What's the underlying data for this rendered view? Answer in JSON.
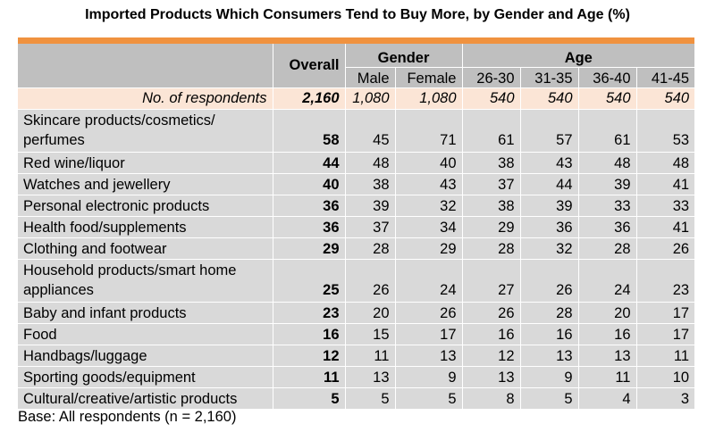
{
  "title": "Imported Products Which Consumers Tend to Buy More, by Gender and Age (%)",
  "header": {
    "overall": "Overall",
    "gender": "Gender",
    "age": "Age",
    "columns": [
      "Male",
      "Female",
      "26-30",
      "31-35",
      "36-40",
      "41-45"
    ]
  },
  "respondents": {
    "label": "No. of respondents",
    "values": [
      "2,160",
      "1,080",
      "1,080",
      "540",
      "540",
      "540",
      "540"
    ]
  },
  "footer": "Base: All respondents (n = 2,160)",
  "chart_data": {
    "type": "table",
    "title": "Imported Products Which Consumers Tend to Buy More, by Gender and Age (%)",
    "columns": [
      "Overall",
      "Male",
      "Female",
      "26-30",
      "31-35",
      "36-40",
      "41-45"
    ],
    "rows": [
      {
        "label": "Skincare products/cosmetics/ perfumes",
        "values": [
          58,
          45,
          71,
          61,
          57,
          61,
          53
        ]
      },
      {
        "label": "Red wine/liquor",
        "values": [
          44,
          48,
          40,
          38,
          43,
          48,
          48
        ]
      },
      {
        "label": "Watches and jewellery",
        "values": [
          40,
          38,
          43,
          37,
          44,
          39,
          41
        ]
      },
      {
        "label": "Personal electronic products",
        "values": [
          36,
          39,
          32,
          38,
          39,
          33,
          33
        ]
      },
      {
        "label": "Health food/supplements",
        "values": [
          36,
          37,
          34,
          29,
          36,
          36,
          41
        ]
      },
      {
        "label": "Clothing and footwear",
        "values": [
          29,
          28,
          29,
          28,
          32,
          28,
          26
        ]
      },
      {
        "label": "Household products/smart home appliances",
        "values": [
          25,
          26,
          24,
          27,
          26,
          24,
          23
        ]
      },
      {
        "label": "Baby and infant products",
        "values": [
          23,
          20,
          26,
          26,
          28,
          20,
          17
        ]
      },
      {
        "label": "Food",
        "values": [
          16,
          15,
          17,
          16,
          16,
          16,
          17
        ]
      },
      {
        "label": "Handbags/luggage",
        "values": [
          12,
          11,
          13,
          12,
          13,
          13,
          11
        ]
      },
      {
        "label": "Sporting goods/equipment",
        "values": [
          11,
          13,
          9,
          13,
          9,
          11,
          10
        ]
      },
      {
        "label": "Cultural/creative/artistic products",
        "values": [
          5,
          5,
          5,
          8,
          5,
          4,
          3
        ]
      }
    ]
  }
}
